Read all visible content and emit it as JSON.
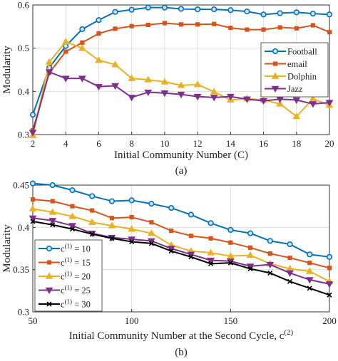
{
  "chart_data": [
    {
      "type": "line",
      "panel_label": "(a)",
      "xlabel": "Initial Community Number (C)",
      "ylabel": "Modularity",
      "xlim": [
        2,
        20
      ],
      "ylim": [
        0.3,
        0.6
      ],
      "xticks": [
        2,
        4,
        6,
        8,
        10,
        12,
        14,
        16,
        18,
        20
      ],
      "yticks": [
        0.3,
        0.4,
        0.5,
        0.6
      ],
      "grid": true,
      "legend": "right, upper-middle",
      "x": [
        2,
        3,
        4,
        5,
        6,
        7,
        8,
        9,
        10,
        11,
        12,
        13,
        14,
        15,
        16,
        17,
        18,
        19,
        20
      ],
      "series": [
        {
          "name": "Football",
          "color": "#0072BD",
          "marker": "circle",
          "values": [
            0.346,
            0.455,
            0.505,
            0.544,
            0.565,
            0.584,
            0.589,
            0.594,
            0.594,
            0.591,
            0.59,
            0.59,
            0.588,
            0.585,
            0.578,
            0.581,
            0.583,
            0.58,
            0.578
          ]
        },
        {
          "name": "email",
          "color": "#D95319",
          "marker": "square",
          "values": [
            0.31,
            0.443,
            0.492,
            0.513,
            0.534,
            0.545,
            0.551,
            0.554,
            0.558,
            0.555,
            0.555,
            0.556,
            0.547,
            0.543,
            0.543,
            0.548,
            0.546,
            0.553,
            0.537
          ]
        },
        {
          "name": "Dolphin",
          "color": "#EDB120",
          "marker": "triangle-up",
          "values": [
            0.298,
            0.468,
            0.515,
            0.5,
            0.472,
            0.462,
            0.43,
            0.427,
            0.422,
            0.414,
            0.416,
            0.399,
            0.38,
            0.383,
            0.38,
            0.371,
            0.342,
            0.383,
            0.368
          ]
        },
        {
          "name": "Jazz",
          "color": "#7E2F8E",
          "marker": "triangle-down",
          "values": [
            0.305,
            0.445,
            0.43,
            0.43,
            0.411,
            0.413,
            0.386,
            0.398,
            0.396,
            0.393,
            0.388,
            0.386,
            0.388,
            0.382,
            0.378,
            0.382,
            0.38,
            0.371,
            0.374
          ]
        }
      ]
    },
    {
      "type": "line",
      "panel_label": "(b)",
      "xlabel": "Initial Community Number at the Second Cycle, c",
      "xlabel_sup": "(2)",
      "ylabel": "Modularity",
      "xlim": [
        50,
        200
      ],
      "ylim": [
        0.3,
        0.45
      ],
      "xticks": [
        50,
        100,
        150,
        200
      ],
      "yticks": [
        0.3,
        0.35,
        0.4,
        0.45
      ],
      "grid": true,
      "legend": "left, lower-middle",
      "x": [
        50,
        60,
        70,
        80,
        90,
        100,
        110,
        120,
        130,
        140,
        150,
        160,
        170,
        180,
        190,
        200
      ],
      "series": [
        {
          "name": "c(1) = 10",
          "color": "#0072BD",
          "marker": "circle",
          "values": [
            0.452,
            0.45,
            0.444,
            0.437,
            0.431,
            0.432,
            0.428,
            0.423,
            0.415,
            0.405,
            0.397,
            0.393,
            0.384,
            0.38,
            0.368,
            0.365
          ]
        },
        {
          "name": "c(1) = 15",
          "color": "#D95319",
          "marker": "square",
          "values": [
            0.433,
            0.431,
            0.425,
            0.42,
            0.411,
            0.412,
            0.406,
            0.396,
            0.39,
            0.387,
            0.382,
            0.376,
            0.369,
            0.364,
            0.358,
            0.352
          ]
        },
        {
          "name": "c(1) = 20",
          "color": "#EDB120",
          "marker": "triangle-up",
          "values": [
            0.422,
            0.418,
            0.413,
            0.406,
            0.402,
            0.398,
            0.393,
            0.379,
            0.372,
            0.37,
            0.366,
            0.367,
            0.357,
            0.351,
            0.348,
            0.336
          ]
        },
        {
          "name": "c(1) = 25",
          "color": "#7E2F8E",
          "marker": "triangle-down",
          "values": [
            0.411,
            0.408,
            0.402,
            0.393,
            0.388,
            0.386,
            0.384,
            0.375,
            0.368,
            0.361,
            0.36,
            0.354,
            0.356,
            0.346,
            0.338,
            0.333
          ]
        },
        {
          "name": "c(1) = 30",
          "color": "#000000",
          "marker": "x",
          "values": [
            0.407,
            0.403,
            0.398,
            0.392,
            0.387,
            0.383,
            0.381,
            0.372,
            0.365,
            0.357,
            0.358,
            0.351,
            0.346,
            0.336,
            0.328,
            0.32
          ]
        }
      ]
    }
  ]
}
